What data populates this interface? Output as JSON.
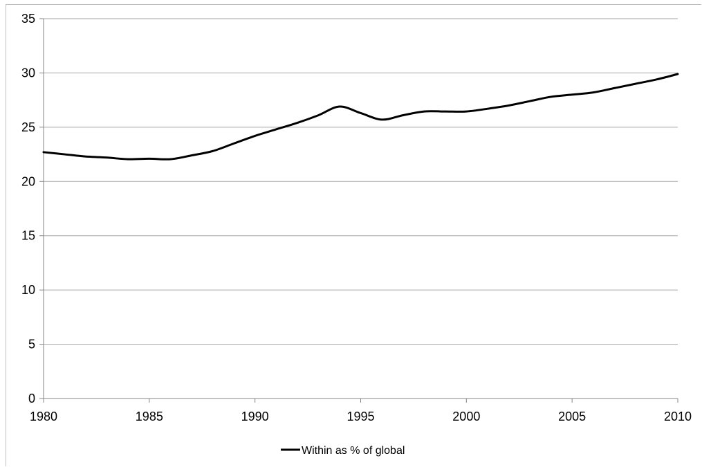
{
  "chart_data": {
    "type": "line",
    "title": "",
    "xlabel": "",
    "ylabel": "",
    "xlim": [
      1980,
      2010
    ],
    "ylim": [
      0,
      35
    ],
    "x_ticks": [
      "1980",
      "1985",
      "1990",
      "1995",
      "2000",
      "2005",
      "2010"
    ],
    "y_ticks": [
      "0",
      "5",
      "10",
      "15",
      "20",
      "25",
      "30",
      "35"
    ],
    "grid": true,
    "legend": "bottom",
    "series": [
      {
        "name": "Within as % of global",
        "color": "#000000",
        "x": [
          1980,
          1981,
          1982,
          1983,
          1984,
          1985,
          1986,
          1987,
          1988,
          1989,
          1990,
          1991,
          1992,
          1993,
          1994,
          1995,
          1996,
          1997,
          1998,
          1999,
          2000,
          2001,
          2002,
          2003,
          2004,
          2005,
          2006,
          2007,
          2008,
          2009,
          2010
        ],
        "y": [
          22.7,
          22.5,
          22.3,
          22.2,
          22.05,
          22.1,
          22.05,
          22.4,
          22.8,
          23.5,
          24.2,
          24.8,
          25.4,
          26.1,
          26.9,
          26.3,
          25.7,
          26.1,
          26.45,
          26.45,
          26.45,
          26.7,
          27.0,
          27.4,
          27.8,
          28.0,
          28.2,
          28.6,
          29.0,
          29.4,
          29.9
        ]
      }
    ]
  }
}
